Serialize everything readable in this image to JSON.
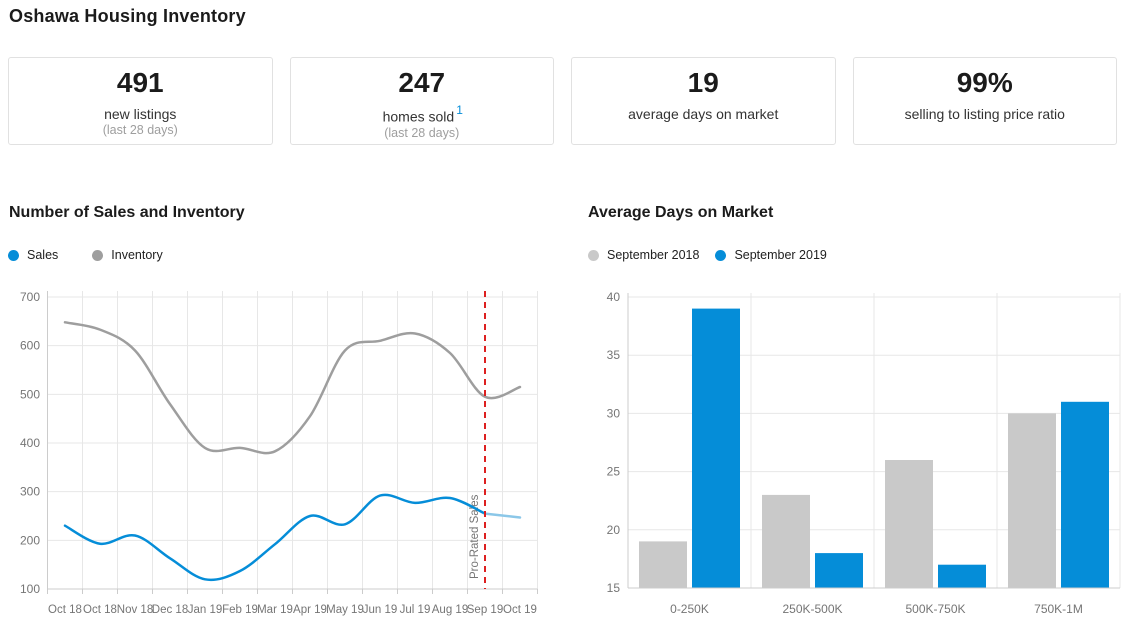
{
  "page": {
    "title": "Oshawa Housing Inventory"
  },
  "stats": [
    {
      "value": "491",
      "label": "new listings",
      "footnote": "",
      "sublabel": "(last 28 days)"
    },
    {
      "value": "247",
      "label": "homes sold",
      "footnote": "1",
      "sublabel": "(last 28 days)"
    },
    {
      "value": "19",
      "label": "average days on market",
      "footnote": "",
      "sublabel": ""
    },
    {
      "value": "99%",
      "label": "selling to listing price ratio",
      "footnote": "",
      "sublabel": ""
    }
  ],
  "colors": {
    "blue": "#058dd8",
    "light_blue": "#8bc7e8",
    "gray_line": "#9e9e9e",
    "gray_bar": "#c9c9c9",
    "red_annotation": "#dd2020",
    "grid": "#e7e7e7",
    "axis": "#cccccc",
    "axis_text": "#757575",
    "card_border": "#e1e1e1"
  },
  "chart_data": [
    {
      "type": "line",
      "title": "Number of Sales and Inventory",
      "x": [
        "Oct 18",
        "Oct 18",
        "Nov 18",
        "Dec 18",
        "Jan 19",
        "Feb 19",
        "Mar 19",
        "Apr 19",
        "May 19",
        "Jun 19",
        "Jul 19",
        "Aug 19",
        "Sep 19",
        "Oct 19"
      ],
      "series": [
        {
          "name": "Inventory",
          "color": "#9e9e9e",
          "values": [
            648,
            633,
            590,
            480,
            390,
            390,
            383,
            455,
            590,
            610,
            625,
            585,
            495,
            515
          ]
        },
        {
          "name": "Sales",
          "color": "#058dd8",
          "values": [
            230,
            193,
            210,
            163,
            120,
            137,
            192,
            250,
            233,
            292,
            277,
            287,
            255,
            247
          ]
        }
      ],
      "ylim": [
        100,
        700
      ],
      "yticks": [
        100,
        200,
        300,
        400,
        500,
        600,
        700
      ],
      "grid": true,
      "legend_position": "top-left",
      "annotation": {
        "label": "Pro-Rated Sales",
        "x_index": 12,
        "color": "#dd2020"
      },
      "prorated": {
        "series": "Sales",
        "from_index": 12,
        "color": "#8bc7e8"
      }
    },
    {
      "type": "bar",
      "title": "Average Days on Market",
      "categories": [
        "0-250K",
        "250K-500K",
        "500K-750K",
        "750K-1M"
      ],
      "series": [
        {
          "name": "September 2018",
          "color": "#c9c9c9",
          "values": [
            19,
            23,
            26,
            30
          ]
        },
        {
          "name": "September 2019",
          "color": "#058dd8",
          "values": [
            39,
            18,
            17,
            31
          ]
        }
      ],
      "ylim": [
        15,
        40
      ],
      "yticks": [
        15,
        20,
        25,
        30,
        35,
        40
      ],
      "grid": true,
      "legend_position": "top-left"
    }
  ]
}
